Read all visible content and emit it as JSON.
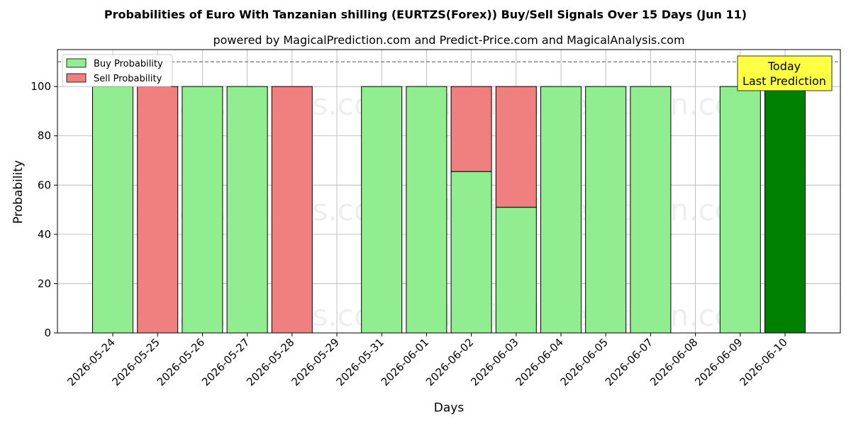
{
  "chart_data": {
    "type": "bar",
    "stacked": true,
    "title": "Probabilities of Euro With Tanzanian shilling (EURTZS(Forex)) Buy/Sell Signals Over 15 Days (Jun 11)",
    "subtitle": "powered by MagicalPrediction.com and Predict-Price.com and MagicalAnalysis.com",
    "xlabel": "Days",
    "ylabel": "Probability",
    "ylim": [
      0,
      115
    ],
    "yticks": [
      0,
      20,
      40,
      60,
      80,
      100
    ],
    "reference_line": 110,
    "grid": true,
    "legend_position": "top-left",
    "categories": [
      "2026-05-24",
      "2026-05-25",
      "2026-05-26",
      "2026-05-27",
      "2026-05-28",
      "2026-05-29",
      "2026-05-31",
      "2026-06-01",
      "2026-06-02",
      "2026-06-03",
      "2026-06-04",
      "2026-06-05",
      "2026-06-07",
      "2026-06-08",
      "2026-06-09",
      "2026-06-10"
    ],
    "series": [
      {
        "name": "Buy Probability",
        "color": "#90ee90",
        "values": [
          100,
          0,
          100,
          100,
          0,
          0,
          100,
          100,
          65.5,
          51,
          100,
          100,
          100,
          0,
          100,
          100
        ]
      },
      {
        "name": "Sell Probability",
        "color": "#f08080",
        "values": [
          0,
          100,
          0,
          0,
          100,
          0,
          0,
          0,
          34.5,
          49,
          0,
          0,
          0,
          0,
          0,
          0
        ]
      }
    ],
    "highlight": {
      "index": 15,
      "color": "#008000"
    },
    "annotation": {
      "line1": "Today",
      "line2": "Last Prediction",
      "color": "#ffff44"
    },
    "watermarks": [
      "MagicalAnalysis.com",
      "MagicalPrediction.com"
    ]
  }
}
